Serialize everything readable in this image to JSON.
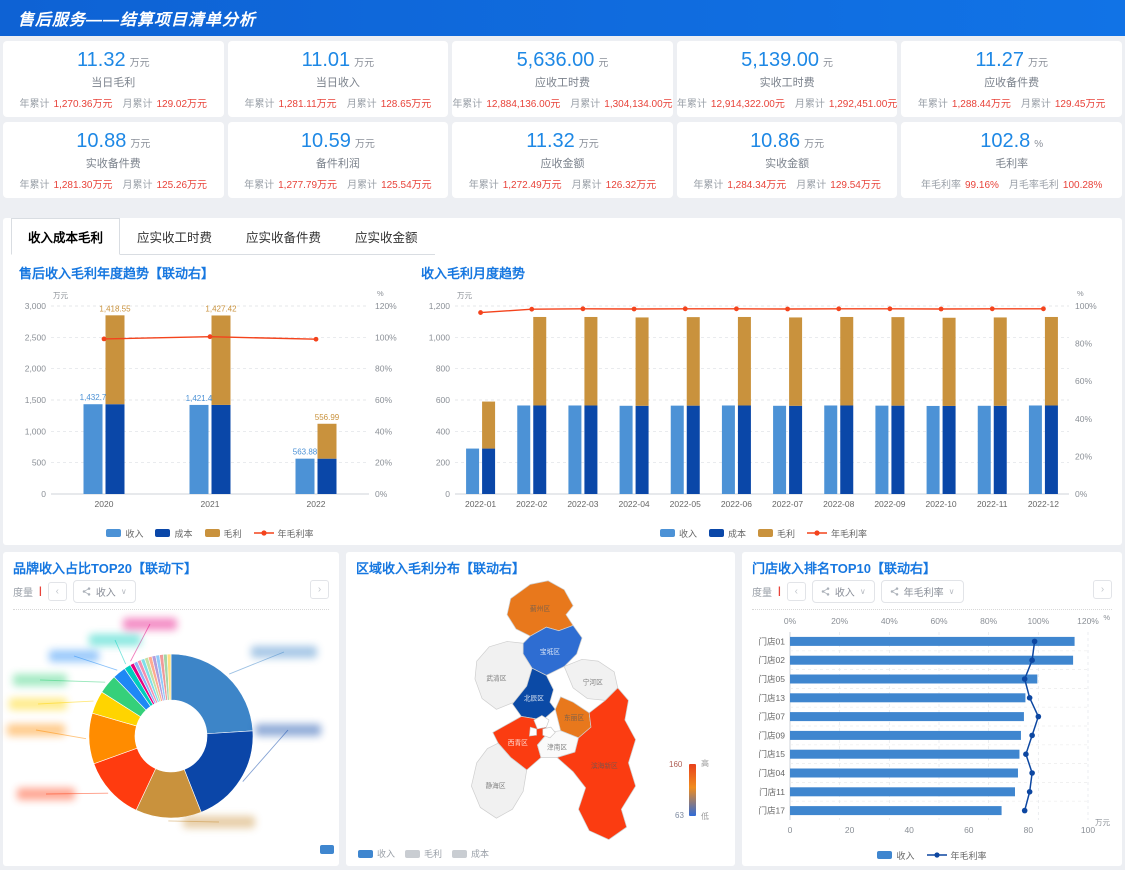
{
  "header": {
    "title": "售后服务——结算项目清单分析"
  },
  "kpi_rows": [
    [
      {
        "value": "11.32",
        "unit": "万元",
        "label": "当日毛利",
        "stats": [
          {
            "k": "年累计",
            "v": "1,270.36万元"
          },
          {
            "k": "月累计",
            "v": "129.02万元"
          }
        ]
      },
      {
        "value": "11.01",
        "unit": "万元",
        "label": "当日收入",
        "stats": [
          {
            "k": "年累计",
            "v": "1,281.11万元"
          },
          {
            "k": "月累计",
            "v": "128.65万元"
          }
        ]
      },
      {
        "value": "5,636.00",
        "unit": "元",
        "label": "应收工时费",
        "stats": [
          {
            "k": "年累计",
            "v": "12,884,136.00元"
          },
          {
            "k": "月累计",
            "v": "1,304,134.00元"
          }
        ]
      },
      {
        "value": "5,139.00",
        "unit": "元",
        "label": "实收工时费",
        "stats": [
          {
            "k": "年累计",
            "v": "12,914,322.00元"
          },
          {
            "k": "月累计",
            "v": "1,292,451.00元"
          }
        ]
      },
      {
        "value": "11.27",
        "unit": "万元",
        "label": "应收备件费",
        "stats": [
          {
            "k": "年累计",
            "v": "1,288.44万元"
          },
          {
            "k": "月累计",
            "v": "129.45万元"
          }
        ]
      }
    ],
    [
      {
        "value": "10.88",
        "unit": "万元",
        "label": "实收备件费",
        "stats": [
          {
            "k": "年累计",
            "v": "1,281.30万元"
          },
          {
            "k": "月累计",
            "v": "125.26万元"
          }
        ]
      },
      {
        "value": "10.59",
        "unit": "万元",
        "label": "备件利润",
        "stats": [
          {
            "k": "年累计",
            "v": "1,277.79万元"
          },
          {
            "k": "月累计",
            "v": "125.54万元"
          }
        ]
      },
      {
        "value": "11.32",
        "unit": "万元",
        "label": "应收金额",
        "stats": [
          {
            "k": "年累计",
            "v": "1,272.49万元"
          },
          {
            "k": "月累计",
            "v": "126.32万元"
          }
        ]
      },
      {
        "value": "10.86",
        "unit": "万元",
        "label": "实收金额",
        "stats": [
          {
            "k": "年累计",
            "v": "1,284.34万元"
          },
          {
            "k": "月累计",
            "v": "129.54万元"
          }
        ]
      },
      {
        "value": "102.8",
        "unit": "%",
        "label": "毛利率",
        "stats": [
          {
            "k": "年毛利率",
            "v": "99.16%"
          },
          {
            "k": "月毛率毛利",
            "v": "100.28%"
          }
        ]
      }
    ]
  ],
  "tabs": [
    "收入成本毛利",
    "应实收工时费",
    "应实收备件费",
    "应实收金额"
  ],
  "controls": {
    "measure_label": "度量",
    "prev": "‹",
    "next": "›",
    "donut_selected": "收入",
    "store_selected_1": "收入",
    "store_selected_2": "年毛利率"
  },
  "chart_data": [
    {
      "type": "bar",
      "title": "售后收入毛利年度趋势【联动右】",
      "categories": [
        "2020",
        "2021",
        "2022"
      ],
      "series": [
        {
          "name": "收入",
          "kind": "bar",
          "color": "#4c92d6",
          "values": [
            1432.7,
            1421.4,
            563.88
          ]
        },
        {
          "name": "成本",
          "kind": "bar-stacked",
          "color": "#0a47a8",
          "values": [
            1432.7,
            1421.4,
            563.8
          ]
        },
        {
          "name": "毛利",
          "kind": "bar-stacked",
          "color": "#c9923d",
          "values": [
            1418.55,
            1427.42,
            556.99
          ]
        },
        {
          "name": "年毛利率",
          "kind": "line",
          "color": "#f4431c",
          "values": [
            99.0,
            100.4,
            98.8
          ]
        }
      ],
      "income_labels": [
        "1,432.7",
        "1,421.4",
        "563.88"
      ],
      "profit_labels": [
        "1,418.55",
        "1,427.42",
        "556.99"
      ],
      "left_axis": {
        "min": 0,
        "max": 3000,
        "step": 500,
        "unit": "万元"
      },
      "right_axis": {
        "min": 0,
        "max": 120,
        "step": 20,
        "unit": "%"
      },
      "legend": [
        "收入",
        "成本",
        "毛利",
        "年毛利率"
      ]
    },
    {
      "type": "bar",
      "title": "收入毛利月度趋势",
      "categories": [
        "2022-01",
        "2022-02",
        "2022-03",
        "2022-04",
        "2022-05",
        "2022-06",
        "2022-07",
        "2022-08",
        "2022-09",
        "2022-10",
        "2022-11",
        "2022-12"
      ],
      "series": [
        {
          "name": "收入",
          "kind": "bar",
          "color": "#4c92d6",
          "values": [
            290,
            565,
            565,
            563,
            564,
            565,
            563,
            565,
            564,
            562,
            563,
            565
          ]
        },
        {
          "name": "成本",
          "kind": "bar-stacked",
          "color": "#0a47a8",
          "values": [
            290,
            565,
            565,
            563,
            564,
            565,
            563,
            565,
            564,
            562,
            563,
            565
          ]
        },
        {
          "name": "毛利",
          "kind": "bar-stacked",
          "color": "#c9923d",
          "values": [
            300,
            565,
            565,
            564,
            565,
            565,
            564,
            565,
            565,
            563,
            564,
            565
          ]
        },
        {
          "name": "年毛利率",
          "kind": "line",
          "color": "#f4431c",
          "values": [
            96.5,
            98.3,
            98.5,
            98.4,
            98.5,
            98.5,
            98.4,
            98.5,
            98.5,
            98.4,
            98.5,
            98.5
          ]
        }
      ],
      "left_axis": {
        "min": 0,
        "max": 1200,
        "step": 200,
        "unit": "万元"
      },
      "right_axis": {
        "min": 0,
        "max": 100,
        "step": 20,
        "unit": "%"
      },
      "legend": [
        "收入",
        "成本",
        "毛利",
        "年毛利率"
      ]
    },
    {
      "type": "pie",
      "title": "品牌收入占比TOP20【联动下】",
      "labels_redacted": true,
      "slices": [
        {
          "color": "#3d85c8",
          "pct": 24
        },
        {
          "color": "#0b46a8",
          "pct": 20
        },
        {
          "color": "#c9923d",
          "pct": 13
        },
        {
          "color": "#ff3b0f",
          "pct": 12.5
        },
        {
          "color": "#ff8c00",
          "pct": 10
        },
        {
          "color": "#ffd400",
          "pct": 4.5
        },
        {
          "color": "#35d07a",
          "pct": 3.8
        },
        {
          "color": "#1e88f5",
          "pct": 2.6
        },
        {
          "color": "#00cdbc",
          "pct": 1.3
        },
        {
          "color": "#e6007e",
          "pct": 0.8
        },
        {
          "color": "#8ab4f8",
          "pct": 0.75
        },
        {
          "color": "#f48fb1",
          "pct": 0.75
        },
        {
          "color": "#80deea",
          "pct": 0.75
        },
        {
          "color": "#c5e1a5",
          "pct": 0.75
        },
        {
          "color": "#ffab91",
          "pct": 0.75
        },
        {
          "color": "#b39ddb",
          "pct": 0.75
        },
        {
          "color": "#90caf9",
          "pct": 0.75
        },
        {
          "color": "#ef9a9a",
          "pct": 0.75
        },
        {
          "color": "#a5d6a7",
          "pct": 0.75
        },
        {
          "color": "#ffe082",
          "pct": 0.75
        }
      ]
    },
    {
      "type": "heatmap",
      "subtype": "choropleth-map",
      "title": "区域收入毛利分布【联动右】",
      "legend": [
        "收入",
        "毛利",
        "成本"
      ],
      "scale": {
        "max": "160",
        "min": "63",
        "high": "高",
        "low": "低"
      },
      "districts": [
        {
          "name": "蓟州区",
          "color": "#e8781c"
        },
        {
          "name": "宝坻区",
          "color": "#2e6dd2"
        },
        {
          "name": "武清区",
          "color": "#f1f1f1"
        },
        {
          "name": "宁河区",
          "color": "#f1f1f1"
        },
        {
          "name": "北辰区",
          "color": "#0b4aa6"
        },
        {
          "name": "东丽区",
          "color": "#e8781c"
        },
        {
          "name": "西青区",
          "color": "#fb3c11"
        },
        {
          "name": "津南区",
          "color": "#fafafa"
        },
        {
          "name": "静海区",
          "color": "#f1f1f1"
        },
        {
          "name": "滨海新区",
          "color": "#fb3c11"
        }
      ]
    },
    {
      "type": "bar",
      "subtype": "horizontal",
      "title": "门店收入排名TOP10【联动右】",
      "categories": [
        "门店01",
        "门店02",
        "门店05",
        "门店13",
        "门店07",
        "门店09",
        "门店15",
        "门店04",
        "门店11",
        "门店17"
      ],
      "series": [
        {
          "name": "收入",
          "kind": "bar",
          "color": "#3f86cf",
          "values": [
            95.5,
            95,
            83,
            79,
            78.5,
            77.5,
            77,
            76.5,
            75.5,
            71
          ]
        },
        {
          "name": "年毛利率",
          "kind": "line",
          "color": "#0d47a1",
          "values": [
            98.5,
            97.5,
            94.5,
            96.5,
            100,
            97.5,
            95,
            97.5,
            96.5,
            94.5
          ]
        }
      ],
      "top_axis": {
        "min": 0,
        "max": 120,
        "step": 20,
        "unit": "%"
      },
      "bottom_axis": {
        "min": 0,
        "max": 100,
        "step": 20,
        "unit": "万元"
      },
      "legend": [
        "收入",
        "年毛利率"
      ]
    }
  ],
  "colors": {
    "accent_blue": "#1e88e5",
    "value_red": "#e8433a",
    "title_blue": "#1677e0",
    "header_blue": "#1068d8"
  }
}
